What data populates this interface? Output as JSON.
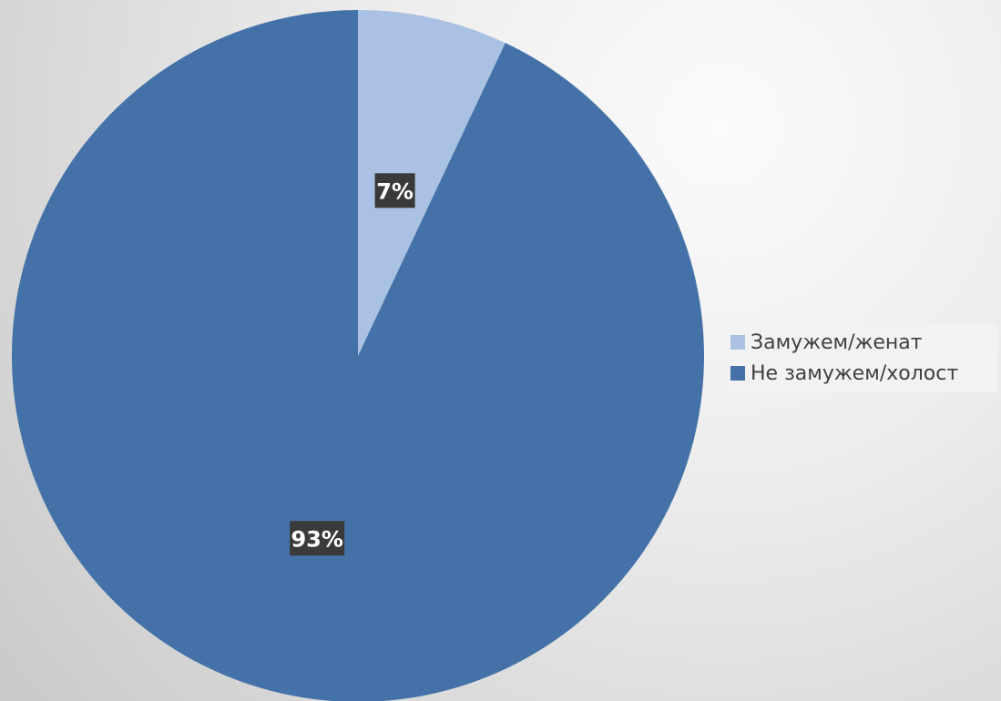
{
  "chart_data": {
    "type": "pie",
    "title": "",
    "start_angle": "12 o'clock",
    "direction": "clockwise",
    "legend_position": "right",
    "slices": [
      {
        "label": "Замужем/женат",
        "value": 7,
        "display": "7%",
        "color": "#a9c1e2"
      },
      {
        "label": "Не замужем/холост",
        "value": 93,
        "display": "93%",
        "color": "#4472a8"
      }
    ]
  },
  "style": {
    "label_box_color": "#3a3a3a"
  }
}
